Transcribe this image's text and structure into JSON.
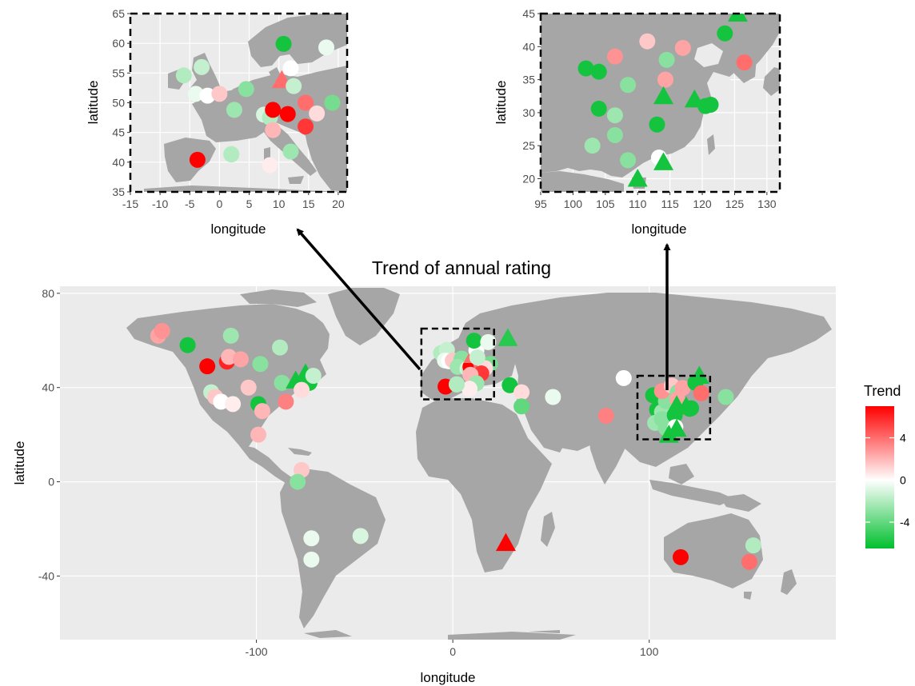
{
  "title": "Trend of annual rating",
  "colors": {
    "panel": "#ebebeb",
    "land": "#a6a6a6",
    "grid": "#ffffff",
    "high": "#ff0000",
    "mid": "#ffffff",
    "low": "#00bf2e"
  },
  "legend": {
    "title": "Trend",
    "ticks": [
      "4",
      "0",
      "-4"
    ],
    "tick_values": [
      4,
      0,
      -4
    ],
    "range": [
      -6.5,
      7
    ]
  },
  "world": {
    "xlabel": "longitude",
    "ylabel": "latitude",
    "x_ticks": [
      "-100",
      "0",
      "100"
    ],
    "y_ticks": [
      "80",
      "40",
      "0",
      "-40"
    ],
    "x_tick_values": [
      -100,
      0,
      100
    ],
    "y_tick_values": [
      80,
      40,
      0,
      -40
    ],
    "xlim": [
      -200,
      195
    ],
    "ylim": [
      -67,
      83
    ],
    "boxes": [
      {
        "name": "europe-box",
        "lon": [
          -16,
          21
        ],
        "lat": [
          35,
          65
        ]
      },
      {
        "name": "east-asia-box",
        "lon": [
          94,
          131
        ],
        "lat": [
          18,
          45
        ]
      }
    ]
  },
  "europe_inset": {
    "xlabel": "longitude",
    "ylabel": "latitude",
    "x_ticks": [
      "-15",
      "-10",
      "-5",
      "0",
      "5",
      "10",
      "15",
      "20"
    ],
    "y_ticks": [
      "65",
      "60",
      "55",
      "50",
      "45",
      "40",
      "35"
    ],
    "x_tick_values": [
      -15,
      -10,
      -5,
      0,
      5,
      10,
      15,
      20
    ],
    "y_tick_values": [
      65,
      60,
      55,
      50,
      45,
      40,
      35
    ],
    "xlim": [
      -15,
      21.5
    ],
    "ylim": [
      35,
      65
    ]
  },
  "asia_inset": {
    "xlabel": "longitude",
    "ylabel": "latitude",
    "x_ticks": [
      "95",
      "100",
      "105",
      "110",
      "115",
      "120",
      "125",
      "130"
    ],
    "y_ticks": [
      "45",
      "40",
      "35",
      "30",
      "25",
      "20"
    ],
    "x_tick_values": [
      95,
      100,
      105,
      110,
      115,
      120,
      125,
      130
    ],
    "y_tick_values": [
      45,
      40,
      35,
      30,
      25,
      20
    ],
    "xlim": [
      95,
      132
    ],
    "ylim": [
      18,
      45
    ]
  },
  "chart_data": {
    "type": "scatter",
    "title": "Trend of annual rating",
    "xlabel": "longitude",
    "ylabel": "latitude",
    "legend_title": "Trend",
    "shapes": [
      "circle",
      "triangle"
    ],
    "points": [
      {
        "lon": -150,
        "lat": 62,
        "trend": 2.5,
        "shape": "circle"
      },
      {
        "lon": -148,
        "lat": 64,
        "trend": 3,
        "shape": "circle"
      },
      {
        "lon": -135,
        "lat": 58,
        "trend": -6,
        "shape": "circle"
      },
      {
        "lon": -125,
        "lat": 49,
        "trend": 7,
        "shape": "circle"
      },
      {
        "lon": -115,
        "lat": 51,
        "trend": 6,
        "shape": "circle"
      },
      {
        "lon": -114,
        "lat": 53,
        "trend": 2,
        "shape": "circle"
      },
      {
        "lon": -108,
        "lat": 52,
        "trend": 2.5,
        "shape": "circle"
      },
      {
        "lon": -113,
        "lat": 62,
        "trend": -2.5,
        "shape": "circle"
      },
      {
        "lon": -98,
        "lat": 50,
        "trend": -3,
        "shape": "circle"
      },
      {
        "lon": -88,
        "lat": 57,
        "trend": -2,
        "shape": "circle"
      },
      {
        "lon": -123,
        "lat": 38,
        "trend": -1.5,
        "shape": "circle"
      },
      {
        "lon": -121,
        "lat": 36,
        "trend": 1.5,
        "shape": "circle"
      },
      {
        "lon": -118,
        "lat": 34,
        "trend": 0,
        "shape": "circle"
      },
      {
        "lon": -112,
        "lat": 33,
        "trend": 0.5,
        "shape": "circle"
      },
      {
        "lon": -104,
        "lat": 40,
        "trend": 1.5,
        "shape": "circle"
      },
      {
        "lon": -99,
        "lat": 33,
        "trend": -6,
        "shape": "circle"
      },
      {
        "lon": -97,
        "lat": 30,
        "trend": 2,
        "shape": "circle"
      },
      {
        "lon": -99,
        "lat": 20,
        "trend": 2,
        "shape": "circle"
      },
      {
        "lon": -87,
        "lat": 42,
        "trend": -3,
        "shape": "circle"
      },
      {
        "lon": -85,
        "lat": 34,
        "trend": 3.5,
        "shape": "circle"
      },
      {
        "lon": -80,
        "lat": 43,
        "trend": -6,
        "shape": "triangle"
      },
      {
        "lon": -75,
        "lat": 46,
        "trend": -6,
        "shape": "triangle"
      },
      {
        "lon": -73,
        "lat": 42,
        "trend": -6,
        "shape": "circle"
      },
      {
        "lon": -71,
        "lat": 45,
        "trend": -1.5,
        "shape": "circle"
      },
      {
        "lon": -77,
        "lat": 39,
        "trend": 1,
        "shape": "circle"
      },
      {
        "lon": -77,
        "lat": 5,
        "trend": 1.5,
        "shape": "circle"
      },
      {
        "lon": -79,
        "lat": 0,
        "trend": -3,
        "shape": "circle"
      },
      {
        "lon": -72,
        "lat": -24,
        "trend": -0.5,
        "shape": "circle"
      },
      {
        "lon": -72,
        "lat": -33,
        "trend": -0.5,
        "shape": "circle"
      },
      {
        "lon": -47,
        "lat": -23,
        "trend": -1,
        "shape": "circle"
      },
      {
        "lon": 27,
        "lat": -26,
        "trend": 7,
        "shape": "triangle"
      },
      {
        "lon": 116,
        "lat": -32,
        "trend": 7,
        "shape": "circle"
      },
      {
        "lon": 153,
        "lat": -27,
        "trend": -2,
        "shape": "circle"
      },
      {
        "lon": 151,
        "lat": -34,
        "trend": 4,
        "shape": "circle"
      },
      {
        "lon": 28,
        "lat": 61,
        "trend": -5.5,
        "shape": "triangle"
      },
      {
        "lon": 29,
        "lat": 41,
        "trend": -6,
        "shape": "circle"
      },
      {
        "lon": 35,
        "lat": 38,
        "trend": 1,
        "shape": "circle"
      },
      {
        "lon": 35,
        "lat": 32,
        "trend": -4,
        "shape": "circle"
      },
      {
        "lon": 51,
        "lat": 36,
        "trend": -0.5,
        "shape": "circle"
      },
      {
        "lon": 78,
        "lat": 28,
        "trend": 3.5,
        "shape": "circle"
      },
      {
        "lon": 87,
        "lat": 44,
        "trend": 0,
        "shape": "circle"
      },
      {
        "lon": 139,
        "lat": 36,
        "trend": -3,
        "shape": "circle"
      },
      {
        "lon": -3.7,
        "lat": 40.4,
        "trend": 7,
        "shape": "circle"
      },
      {
        "lon": 2,
        "lat": 41.4,
        "trend": -1.5,
        "shape": "circle"
      },
      {
        "lon": -6,
        "lat": 54.6,
        "trend": -2,
        "shape": "circle"
      },
      {
        "lon": -3,
        "lat": 56,
        "trend": -1.5,
        "shape": "circle"
      },
      {
        "lon": -4,
        "lat": 51.5,
        "trend": -0.5,
        "shape": "circle"
      },
      {
        "lon": -2,
        "lat": 51.2,
        "trend": 0,
        "shape": "circle"
      },
      {
        "lon": 0,
        "lat": 51.5,
        "trend": 1.5,
        "shape": "circle"
      },
      {
        "lon": 4.5,
        "lat": 52.3,
        "trend": -3,
        "shape": "circle"
      },
      {
        "lon": 2.5,
        "lat": 48.8,
        "trend": -2.5,
        "shape": "circle"
      },
      {
        "lon": 7.5,
        "lat": 48,
        "trend": -1,
        "shape": "circle"
      },
      {
        "lon": 8.5,
        "lat": 47.5,
        "trend": -2,
        "shape": "circle"
      },
      {
        "lon": 9,
        "lat": 48.8,
        "trend": 7,
        "shape": "circle"
      },
      {
        "lon": 11.5,
        "lat": 48.1,
        "trend": 7,
        "shape": "circle"
      },
      {
        "lon": 14.5,
        "lat": 50,
        "trend": 4,
        "shape": "circle"
      },
      {
        "lon": 19,
        "lat": 50,
        "trend": -3.5,
        "shape": "circle"
      },
      {
        "lon": 16.4,
        "lat": 48.2,
        "trend": 1,
        "shape": "circle"
      },
      {
        "lon": 14.5,
        "lat": 46,
        "trend": 5.5,
        "shape": "circle"
      },
      {
        "lon": 9,
        "lat": 45.4,
        "trend": 2,
        "shape": "circle"
      },
      {
        "lon": 12,
        "lat": 41.8,
        "trend": -2.5,
        "shape": "circle"
      },
      {
        "lon": 8.5,
        "lat": 39.5,
        "trend": 0.5,
        "shape": "circle"
      },
      {
        "lon": 2,
        "lat": 41.3,
        "trend": -2,
        "shape": "circle"
      },
      {
        "lon": 10.5,
        "lat": 53.8,
        "trend": 4,
        "shape": "triangle"
      },
      {
        "lon": 12,
        "lat": 55.8,
        "trend": 0,
        "shape": "circle"
      },
      {
        "lon": 12.5,
        "lat": 52.8,
        "trend": -1.5,
        "shape": "circle"
      },
      {
        "lon": 10.8,
        "lat": 59.9,
        "trend": -6,
        "shape": "circle"
      },
      {
        "lon": 18,
        "lat": 59.3,
        "trend": -0.5,
        "shape": "circle"
      },
      {
        "lon": 102,
        "lat": 36.7,
        "trend": -6,
        "shape": "circle"
      },
      {
        "lon": 104,
        "lat": 36.2,
        "trend": -6,
        "shape": "circle"
      },
      {
        "lon": 104,
        "lat": 30.6,
        "trend": -6,
        "shape": "circle"
      },
      {
        "lon": 106.5,
        "lat": 29.6,
        "trend": -2.5,
        "shape": "circle"
      },
      {
        "lon": 103,
        "lat": 25,
        "trend": -2.5,
        "shape": "circle"
      },
      {
        "lon": 106.5,
        "lat": 26.6,
        "trend": -3,
        "shape": "circle"
      },
      {
        "lon": 108.5,
        "lat": 34.2,
        "trend": -3,
        "shape": "circle"
      },
      {
        "lon": 108.5,
        "lat": 22.8,
        "trend": -3,
        "shape": "circle"
      },
      {
        "lon": 106.5,
        "lat": 38.5,
        "trend": 3,
        "shape": "circle"
      },
      {
        "lon": 111.5,
        "lat": 40.8,
        "trend": 1.5,
        "shape": "circle"
      },
      {
        "lon": 114.5,
        "lat": 38,
        "trend": -3,
        "shape": "circle"
      },
      {
        "lon": 117,
        "lat": 39.8,
        "trend": 2.5,
        "shape": "circle"
      },
      {
        "lon": 114.3,
        "lat": 35,
        "trend": 2.5,
        "shape": "circle"
      },
      {
        "lon": 113,
        "lat": 28.2,
        "trend": -6,
        "shape": "circle"
      },
      {
        "lon": 114,
        "lat": 32.5,
        "trend": -6,
        "shape": "triangle"
      },
      {
        "lon": 113.3,
        "lat": 23.2,
        "trend": 0,
        "shape": "circle"
      },
      {
        "lon": 114,
        "lat": 22.5,
        "trend": -6,
        "shape": "triangle"
      },
      {
        "lon": 110,
        "lat": 20,
        "trend": -6,
        "shape": "triangle"
      },
      {
        "lon": 118.8,
        "lat": 32,
        "trend": -6,
        "shape": "triangle"
      },
      {
        "lon": 120.5,
        "lat": 31,
        "trend": -6,
        "shape": "circle"
      },
      {
        "lon": 121.3,
        "lat": 31.2,
        "trend": -6,
        "shape": "circle"
      },
      {
        "lon": 123.5,
        "lat": 42,
        "trend": -6,
        "shape": "circle"
      },
      {
        "lon": 126.5,
        "lat": 37.6,
        "trend": 4,
        "shape": "circle"
      },
      {
        "lon": 125.5,
        "lat": 45,
        "trend": -6,
        "shape": "triangle"
      }
    ]
  }
}
